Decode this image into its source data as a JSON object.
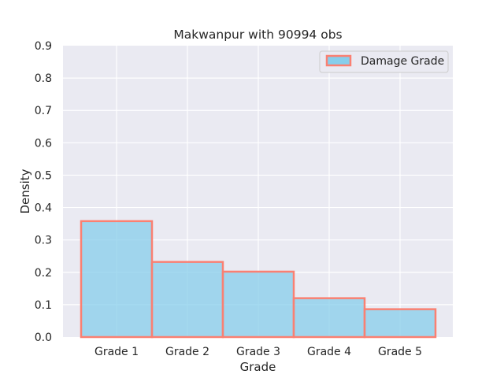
{
  "chart_data": {
    "type": "bar",
    "title": "Makwanpur with 90994 obs",
    "xlabel": "Grade",
    "ylabel": "Density",
    "categories": [
      "Grade 1",
      "Grade 2",
      "Grade 3",
      "Grade 4",
      "Grade 5"
    ],
    "series": [
      {
        "name": "Damage Grade",
        "values": [
          0.358,
          0.232,
          0.202,
          0.12,
          0.086
        ]
      }
    ],
    "ylim": [
      0,
      0.9
    ],
    "yticks": [
      "0.0",
      "0.1",
      "0.2",
      "0.3",
      "0.4",
      "0.5",
      "0.6",
      "0.7",
      "0.8",
      "0.9"
    ],
    "grid": true,
    "legend_position": "top-right",
    "colors": {
      "plot_background": "#eaeaf2",
      "grid": "#ffffff",
      "bar_fill": "#87ceeb",
      "bar_edge": "#fa8072"
    }
  }
}
